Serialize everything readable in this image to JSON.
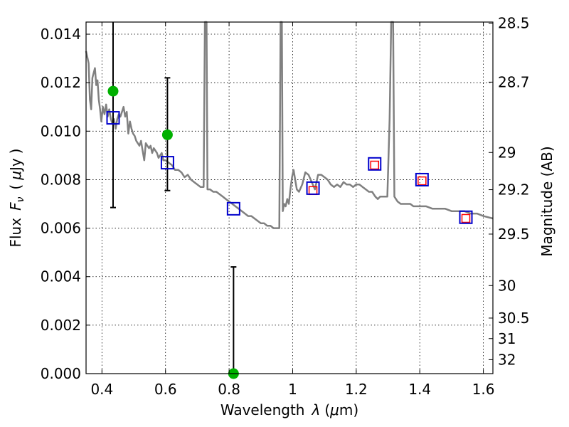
{
  "chart_data": {
    "type": "scatter",
    "xlabel": "Wavelength  λ (μm)",
    "ylabel": "Flux  F_ν  ( μJy )",
    "ylabel_parts": {
      "flux": "Flux",
      "F": "F",
      "nu": "ν",
      "paren_open": "(",
      "mu": "μ",
      "unit": "Jy",
      "paren_close": ")"
    },
    "xlabel_parts": {
      "word": "Wavelength",
      "lambda": "λ",
      "unit_open": "(",
      "mu": "μ",
      "unit": "m)"
    },
    "y2label": "Magnitude (AB)",
    "xlim": [
      0.35,
      1.63
    ],
    "ylim": [
      0.0,
      0.0145
    ],
    "grid": true,
    "x_ticks": [
      {
        "value": 0.4,
        "label": "0.4"
      },
      {
        "value": 0.6,
        "label": "0.6"
      },
      {
        "value": 0.8,
        "label": "0.8"
      },
      {
        "value": 1.0,
        "label": "1"
      },
      {
        "value": 1.2,
        "label": "1.2"
      },
      {
        "value": 1.4,
        "label": "1.4"
      },
      {
        "value": 1.6,
        "label": "1.6"
      }
    ],
    "y_ticks": [
      {
        "value": 0.0,
        "label": "0.000"
      },
      {
        "value": 0.002,
        "label": "0.002"
      },
      {
        "value": 0.004,
        "label": "0.004"
      },
      {
        "value": 0.006,
        "label": "0.006"
      },
      {
        "value": 0.008,
        "label": "0.008"
      },
      {
        "value": 0.01,
        "label": "0.010"
      },
      {
        "value": 0.012,
        "label": "0.012"
      },
      {
        "value": 0.014,
        "label": "0.014"
      }
    ],
    "mag_ticks": [
      {
        "mag": 28.5,
        "label": "28.5"
      },
      {
        "mag": 28.7,
        "label": "28.7"
      },
      {
        "mag": 29.0,
        "label": "29"
      },
      {
        "mag": 29.2,
        "label": "29.2"
      },
      {
        "mag": 29.5,
        "label": "29.5"
      },
      {
        "mag": 30.0,
        "label": "30"
      },
      {
        "mag": 30.5,
        "label": "30.5"
      },
      {
        "mag": 31.0,
        "label": "31"
      },
      {
        "mag": 32.0,
        "label": "32"
      }
    ],
    "series": [
      {
        "kind": "line",
        "color": "#808080",
        "points": [
          [
            0.35,
            0.0133
          ],
          [
            0.358,
            0.0128
          ],
          [
            0.362,
            0.0113
          ],
          [
            0.366,
            0.0109
          ],
          [
            0.37,
            0.0122
          ],
          [
            0.374,
            0.0124
          ],
          [
            0.378,
            0.0126
          ],
          [
            0.382,
            0.0119
          ],
          [
            0.386,
            0.0121
          ],
          [
            0.39,
            0.0113
          ],
          [
            0.394,
            0.0109
          ],
          [
            0.398,
            0.0104
          ],
          [
            0.403,
            0.011
          ],
          [
            0.408,
            0.0107
          ],
          [
            0.413,
            0.0111
          ],
          [
            0.418,
            0.0106
          ],
          [
            0.423,
            0.0109
          ],
          [
            0.428,
            0.0105
          ],
          [
            0.433,
            0.0103
          ],
          [
            0.438,
            0.0105
          ],
          [
            0.443,
            0.0101
          ],
          [
            0.448,
            0.0105
          ],
          [
            0.453,
            0.0107
          ],
          [
            0.458,
            0.0106
          ],
          [
            0.463,
            0.0108
          ],
          [
            0.468,
            0.011
          ],
          [
            0.473,
            0.0106
          ],
          [
            0.478,
            0.0108
          ],
          [
            0.483,
            0.0099
          ],
          [
            0.488,
            0.0104
          ],
          [
            0.493,
            0.0101
          ],
          [
            0.498,
            0.0099
          ],
          [
            0.503,
            0.0098
          ],
          [
            0.508,
            0.0096
          ],
          [
            0.513,
            0.0095
          ],
          [
            0.518,
            0.0094
          ],
          [
            0.523,
            0.0096
          ],
          [
            0.528,
            0.0092
          ],
          [
            0.533,
            0.0088
          ],
          [
            0.538,
            0.0095
          ],
          [
            0.543,
            0.0094
          ],
          [
            0.548,
            0.0093
          ],
          [
            0.553,
            0.0094
          ],
          [
            0.558,
            0.0091
          ],
          [
            0.563,
            0.0093
          ],
          [
            0.568,
            0.0092
          ],
          [
            0.573,
            0.0091
          ],
          [
            0.578,
            0.0089
          ],
          [
            0.583,
            0.009
          ],
          [
            0.588,
            0.0091
          ],
          [
            0.593,
            0.0088
          ],
          [
            0.6,
            0.0088
          ],
          [
            0.61,
            0.0087
          ],
          [
            0.62,
            0.0086
          ],
          [
            0.63,
            0.0084
          ],
          [
            0.64,
            0.0084
          ],
          [
            0.65,
            0.0083
          ],
          [
            0.66,
            0.0081
          ],
          [
            0.67,
            0.0082
          ],
          [
            0.68,
            0.008
          ],
          [
            0.69,
            0.0079
          ],
          [
            0.7,
            0.0078
          ],
          [
            0.71,
            0.0077
          ],
          [
            0.72,
            0.0077
          ],
          [
            0.724,
            0.0145
          ],
          [
            0.729,
            0.0145
          ],
          [
            0.732,
            0.0076
          ],
          [
            0.74,
            0.0076
          ],
          [
            0.75,
            0.0075
          ],
          [
            0.76,
            0.0075
          ],
          [
            0.77,
            0.0074
          ],
          [
            0.78,
            0.0073
          ],
          [
            0.79,
            0.0072
          ],
          [
            0.8,
            0.0071
          ],
          [
            0.81,
            0.007
          ],
          [
            0.82,
            0.0069
          ],
          [
            0.83,
            0.0068
          ],
          [
            0.84,
            0.0067
          ],
          [
            0.85,
            0.0066
          ],
          [
            0.86,
            0.0065
          ],
          [
            0.87,
            0.0065
          ],
          [
            0.88,
            0.0064
          ],
          [
            0.89,
            0.0063
          ],
          [
            0.9,
            0.0062
          ],
          [
            0.91,
            0.0062
          ],
          [
            0.92,
            0.0061
          ],
          [
            0.93,
            0.0061
          ],
          [
            0.94,
            0.006
          ],
          [
            0.95,
            0.006
          ],
          [
            0.958,
            0.006
          ],
          [
            0.962,
            0.0145
          ],
          [
            0.966,
            0.0145
          ],
          [
            0.969,
            0.0067
          ],
          [
            0.973,
            0.007
          ],
          [
            0.978,
            0.0069
          ],
          [
            0.983,
            0.0072
          ],
          [
            0.988,
            0.007
          ],
          [
            0.993,
            0.0076
          ],
          [
            0.998,
            0.0081
          ],
          [
            1.003,
            0.0084
          ],
          [
            1.008,
            0.008
          ],
          [
            1.013,
            0.0076
          ],
          [
            1.02,
            0.0075
          ],
          [
            1.03,
            0.0078
          ],
          [
            1.04,
            0.0083
          ],
          [
            1.05,
            0.0082
          ],
          [
            1.06,
            0.0079
          ],
          [
            1.07,
            0.0076
          ],
          [
            1.08,
            0.0082
          ],
          [
            1.09,
            0.0082
          ],
          [
            1.1,
            0.0081
          ],
          [
            1.11,
            0.008
          ],
          [
            1.12,
            0.0078
          ],
          [
            1.13,
            0.0077
          ],
          [
            1.14,
            0.0078
          ],
          [
            1.15,
            0.0077
          ],
          [
            1.16,
            0.0079
          ],
          [
            1.17,
            0.0078
          ],
          [
            1.18,
            0.0078
          ],
          [
            1.19,
            0.0077
          ],
          [
            1.2,
            0.0078
          ],
          [
            1.21,
            0.0078
          ],
          [
            1.22,
            0.0077
          ],
          [
            1.23,
            0.0076
          ],
          [
            1.24,
            0.0075
          ],
          [
            1.25,
            0.0075
          ],
          [
            1.26,
            0.0073
          ],
          [
            1.268,
            0.0072
          ],
          [
            1.275,
            0.0073
          ],
          [
            1.282,
            0.0073
          ],
          [
            1.29,
            0.0073
          ],
          [
            1.298,
            0.0073
          ],
          [
            1.305,
            0.0105
          ],
          [
            1.31,
            0.0145
          ],
          [
            1.316,
            0.0145
          ],
          [
            1.32,
            0.0073
          ],
          [
            1.33,
            0.0071
          ],
          [
            1.34,
            0.007
          ],
          [
            1.35,
            0.007
          ],
          [
            1.36,
            0.007
          ],
          [
            1.37,
            0.007
          ],
          [
            1.38,
            0.0069
          ],
          [
            1.39,
            0.0069
          ],
          [
            1.4,
            0.0069
          ],
          [
            1.42,
            0.0069
          ],
          [
            1.44,
            0.0068
          ],
          [
            1.46,
            0.0068
          ],
          [
            1.48,
            0.0068
          ],
          [
            1.5,
            0.0067
          ],
          [
            1.52,
            0.0067
          ],
          [
            1.54,
            0.0067
          ],
          [
            1.56,
            0.0066
          ],
          [
            1.58,
            0.0066
          ],
          [
            1.6,
            0.0065
          ],
          [
            1.63,
            0.0064
          ]
        ]
      },
      {
        "kind": "errorbar",
        "color": "#000000",
        "points": [
          {
            "x": 0.435,
            "low": 0.00685,
            "high": 0.0145
          },
          {
            "x": 0.606,
            "low": 0.00755,
            "high": 0.0122
          },
          {
            "x": 0.814,
            "low": 0.0,
            "high": 0.0044
          }
        ]
      },
      {
        "kind": "marker-circle",
        "color": "#00b000",
        "points": [
          [
            0.435,
            0.01165
          ],
          [
            0.606,
            0.00985
          ],
          [
            0.814,
            0.0
          ]
        ]
      },
      {
        "kind": "marker-square-small",
        "color": "#ff0000",
        "points": [
          [
            1.064,
            0.00755
          ],
          [
            1.258,
            0.0086
          ],
          [
            1.407,
            0.00795
          ],
          [
            1.545,
            0.0064
          ]
        ]
      },
      {
        "kind": "marker-square",
        "color": "#0000cc",
        "points": [
          [
            0.435,
            0.01055
          ],
          [
            0.606,
            0.0087
          ],
          [
            0.814,
            0.0068
          ],
          [
            1.064,
            0.00765
          ],
          [
            1.258,
            0.00865
          ],
          [
            1.407,
            0.008
          ],
          [
            1.545,
            0.00645
          ]
        ]
      }
    ]
  }
}
